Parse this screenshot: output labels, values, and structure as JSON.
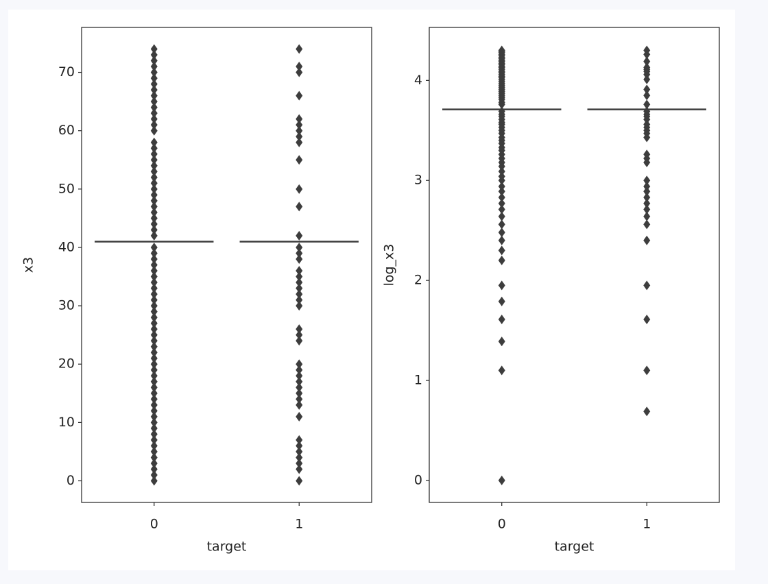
{
  "chart_data": [
    {
      "type": "box",
      "xlabel": "target",
      "ylabel": "x3",
      "categories": [
        "0",
        "1"
      ],
      "color": "#3d3d3d",
      "ylim": [
        -3.7,
        77.7
      ],
      "yticks": [
        0,
        10,
        20,
        30,
        40,
        50,
        60,
        70
      ],
      "medians": [
        41,
        41
      ],
      "outliers": [
        [
          0,
          1,
          2,
          3,
          4,
          5,
          6,
          7,
          8,
          9,
          10,
          11,
          12,
          13,
          14,
          15,
          16,
          17,
          18,
          19,
          20,
          21,
          22,
          23,
          24,
          25,
          26,
          27,
          28,
          29,
          30,
          31,
          32,
          33,
          34,
          35,
          36,
          37,
          38,
          39,
          40,
          42,
          43,
          44,
          45,
          46,
          47,
          48,
          49,
          50,
          51,
          52,
          53,
          54,
          55,
          56,
          57,
          58,
          60,
          61,
          62,
          63,
          64,
          65,
          66,
          67,
          68,
          69,
          70,
          71,
          72,
          73,
          74
        ],
        [
          0,
          2,
          3,
          4,
          5,
          6,
          7,
          11,
          13,
          14,
          15,
          16,
          17,
          18,
          19,
          20,
          24,
          25,
          26,
          30,
          31,
          32,
          33,
          34,
          35,
          36,
          38,
          39,
          40,
          42,
          47,
          50,
          55,
          58,
          59,
          60,
          61,
          62,
          66,
          70,
          71,
          74
        ]
      ]
    },
    {
      "type": "box",
      "xlabel": "target",
      "ylabel": "log_x3",
      "categories": [
        "0",
        "1"
      ],
      "color": "#3d3d3d",
      "ylim": [
        -0.22,
        4.53
      ],
      "yticks": [
        0,
        1,
        2,
        3,
        4
      ],
      "medians": [
        3.71,
        3.71
      ],
      "outliers": [
        [
          0,
          1.1,
          1.39,
          1.61,
          1.79,
          1.95,
          2.2,
          2.3,
          2.4,
          2.48,
          2.56,
          2.64,
          2.71,
          2.77,
          2.83,
          2.89,
          2.94,
          3.0,
          3.04,
          3.09,
          3.14,
          3.18,
          3.22,
          3.26,
          3.3,
          3.33,
          3.37,
          3.4,
          3.43,
          3.47,
          3.5,
          3.53,
          3.56,
          3.58,
          3.61,
          3.64,
          3.66,
          3.69,
          3.76,
          3.78,
          3.81,
          3.83,
          3.85,
          3.87,
          3.89,
          3.91,
          3.93,
          3.95,
          3.97,
          3.99,
          4.01,
          4.03,
          4.04,
          4.06,
          4.08,
          4.09,
          4.11,
          4.13,
          4.14,
          4.16,
          4.17,
          4.19,
          4.2,
          4.22,
          4.23,
          4.25,
          4.26,
          4.28,
          4.29,
          4.3
        ],
        [
          0.69,
          1.1,
          1.61,
          1.95,
          2.4,
          2.56,
          2.64,
          2.71,
          2.77,
          2.83,
          2.89,
          2.94,
          3.0,
          3.18,
          3.22,
          3.26,
          3.43,
          3.47,
          3.5,
          3.53,
          3.56,
          3.61,
          3.64,
          3.66,
          3.69,
          3.76,
          3.85,
          3.91,
          4.01,
          4.06,
          4.09,
          4.11,
          4.13,
          4.19,
          4.26,
          4.3
        ]
      ]
    }
  ]
}
